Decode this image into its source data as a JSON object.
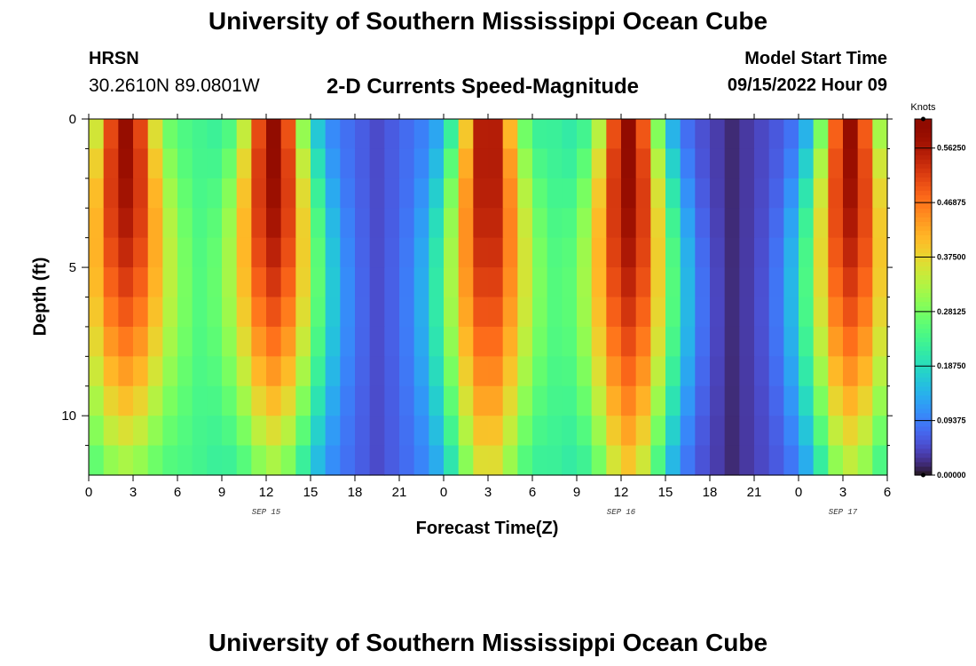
{
  "page": {
    "title": "University of Southern Mississippi Ocean Cube",
    "station_code": "HRSN",
    "station_coords": "30.2610N  89.0801W",
    "plot_title": "2-D Currents Speed-Magnitude",
    "run_label": "Model Start Time",
    "run_time": "09/15/2022 Hour 09",
    "footer_title": "University of Southern Mississippi Ocean Cube"
  },
  "chart_data": {
    "type": "heatmap",
    "title": "2-D Currents Speed-Magnitude",
    "xlabel": "Forecast Time(Z)",
    "ylabel": "Depth (ft)",
    "x_unit": "hours",
    "xlim": [
      0,
      54
    ],
    "ylim": [
      0,
      12
    ],
    "x_ticks": [
      0,
      3,
      6,
      9,
      12,
      15,
      18,
      21,
      24,
      27,
      30,
      33,
      36,
      39,
      42,
      45,
      48,
      51,
      54
    ],
    "x_tick_labels": [
      "0",
      "3",
      "6",
      "9",
      "12",
      "15",
      "18",
      "21",
      "0",
      "3",
      "6",
      "9",
      "12",
      "15",
      "18",
      "21",
      "0",
      "3",
      "6"
    ],
    "y_ticks": [
      0,
      5,
      10
    ],
    "y_tick_labels": [
      "0",
      "5",
      "10"
    ],
    "dates": [
      {
        "label": "SEP 15",
        "at_hour": 12
      },
      {
        "label": "SEP 16",
        "at_hour": 36
      },
      {
        "label": "SEP 17",
        "at_hour": 51
      }
    ],
    "colorbar": {
      "unit": "Knots",
      "min": 0.0,
      "max": 0.6125,
      "tick_values": [
        0.0,
        0.09375,
        0.1875,
        0.28125,
        0.375,
        0.46875,
        0.5625
      ],
      "tick_labels": [
        "0.00000",
        "0.09375",
        "0.18750",
        "0.28125",
        "0.37500",
        "0.46875",
        "0.56250"
      ],
      "colormap": "turbo"
    },
    "speed_peaks_knots": [
      {
        "hour": 2.5,
        "max": 0.59,
        "min_at_bottom": 0.3
      },
      {
        "hour": 12.5,
        "max": 0.6,
        "min_at_bottom": 0.3
      },
      {
        "hour": 27,
        "max": 0.58,
        "min_at_bottom": 0.36
      },
      {
        "hour": 36.5,
        "max": 0.6,
        "min_at_bottom": 0.38
      },
      {
        "hour": 51.5,
        "max": 0.59,
        "min_at_bottom": 0.32
      }
    ],
    "speed_troughs_knots": [
      {
        "hour": 7,
        "min": 0.24
      },
      {
        "hour": 19.5,
        "min": 0.05
      },
      {
        "hour": 31.5,
        "min": 0.22
      },
      {
        "hour": 43.5,
        "min": 0.02
      }
    ]
  }
}
